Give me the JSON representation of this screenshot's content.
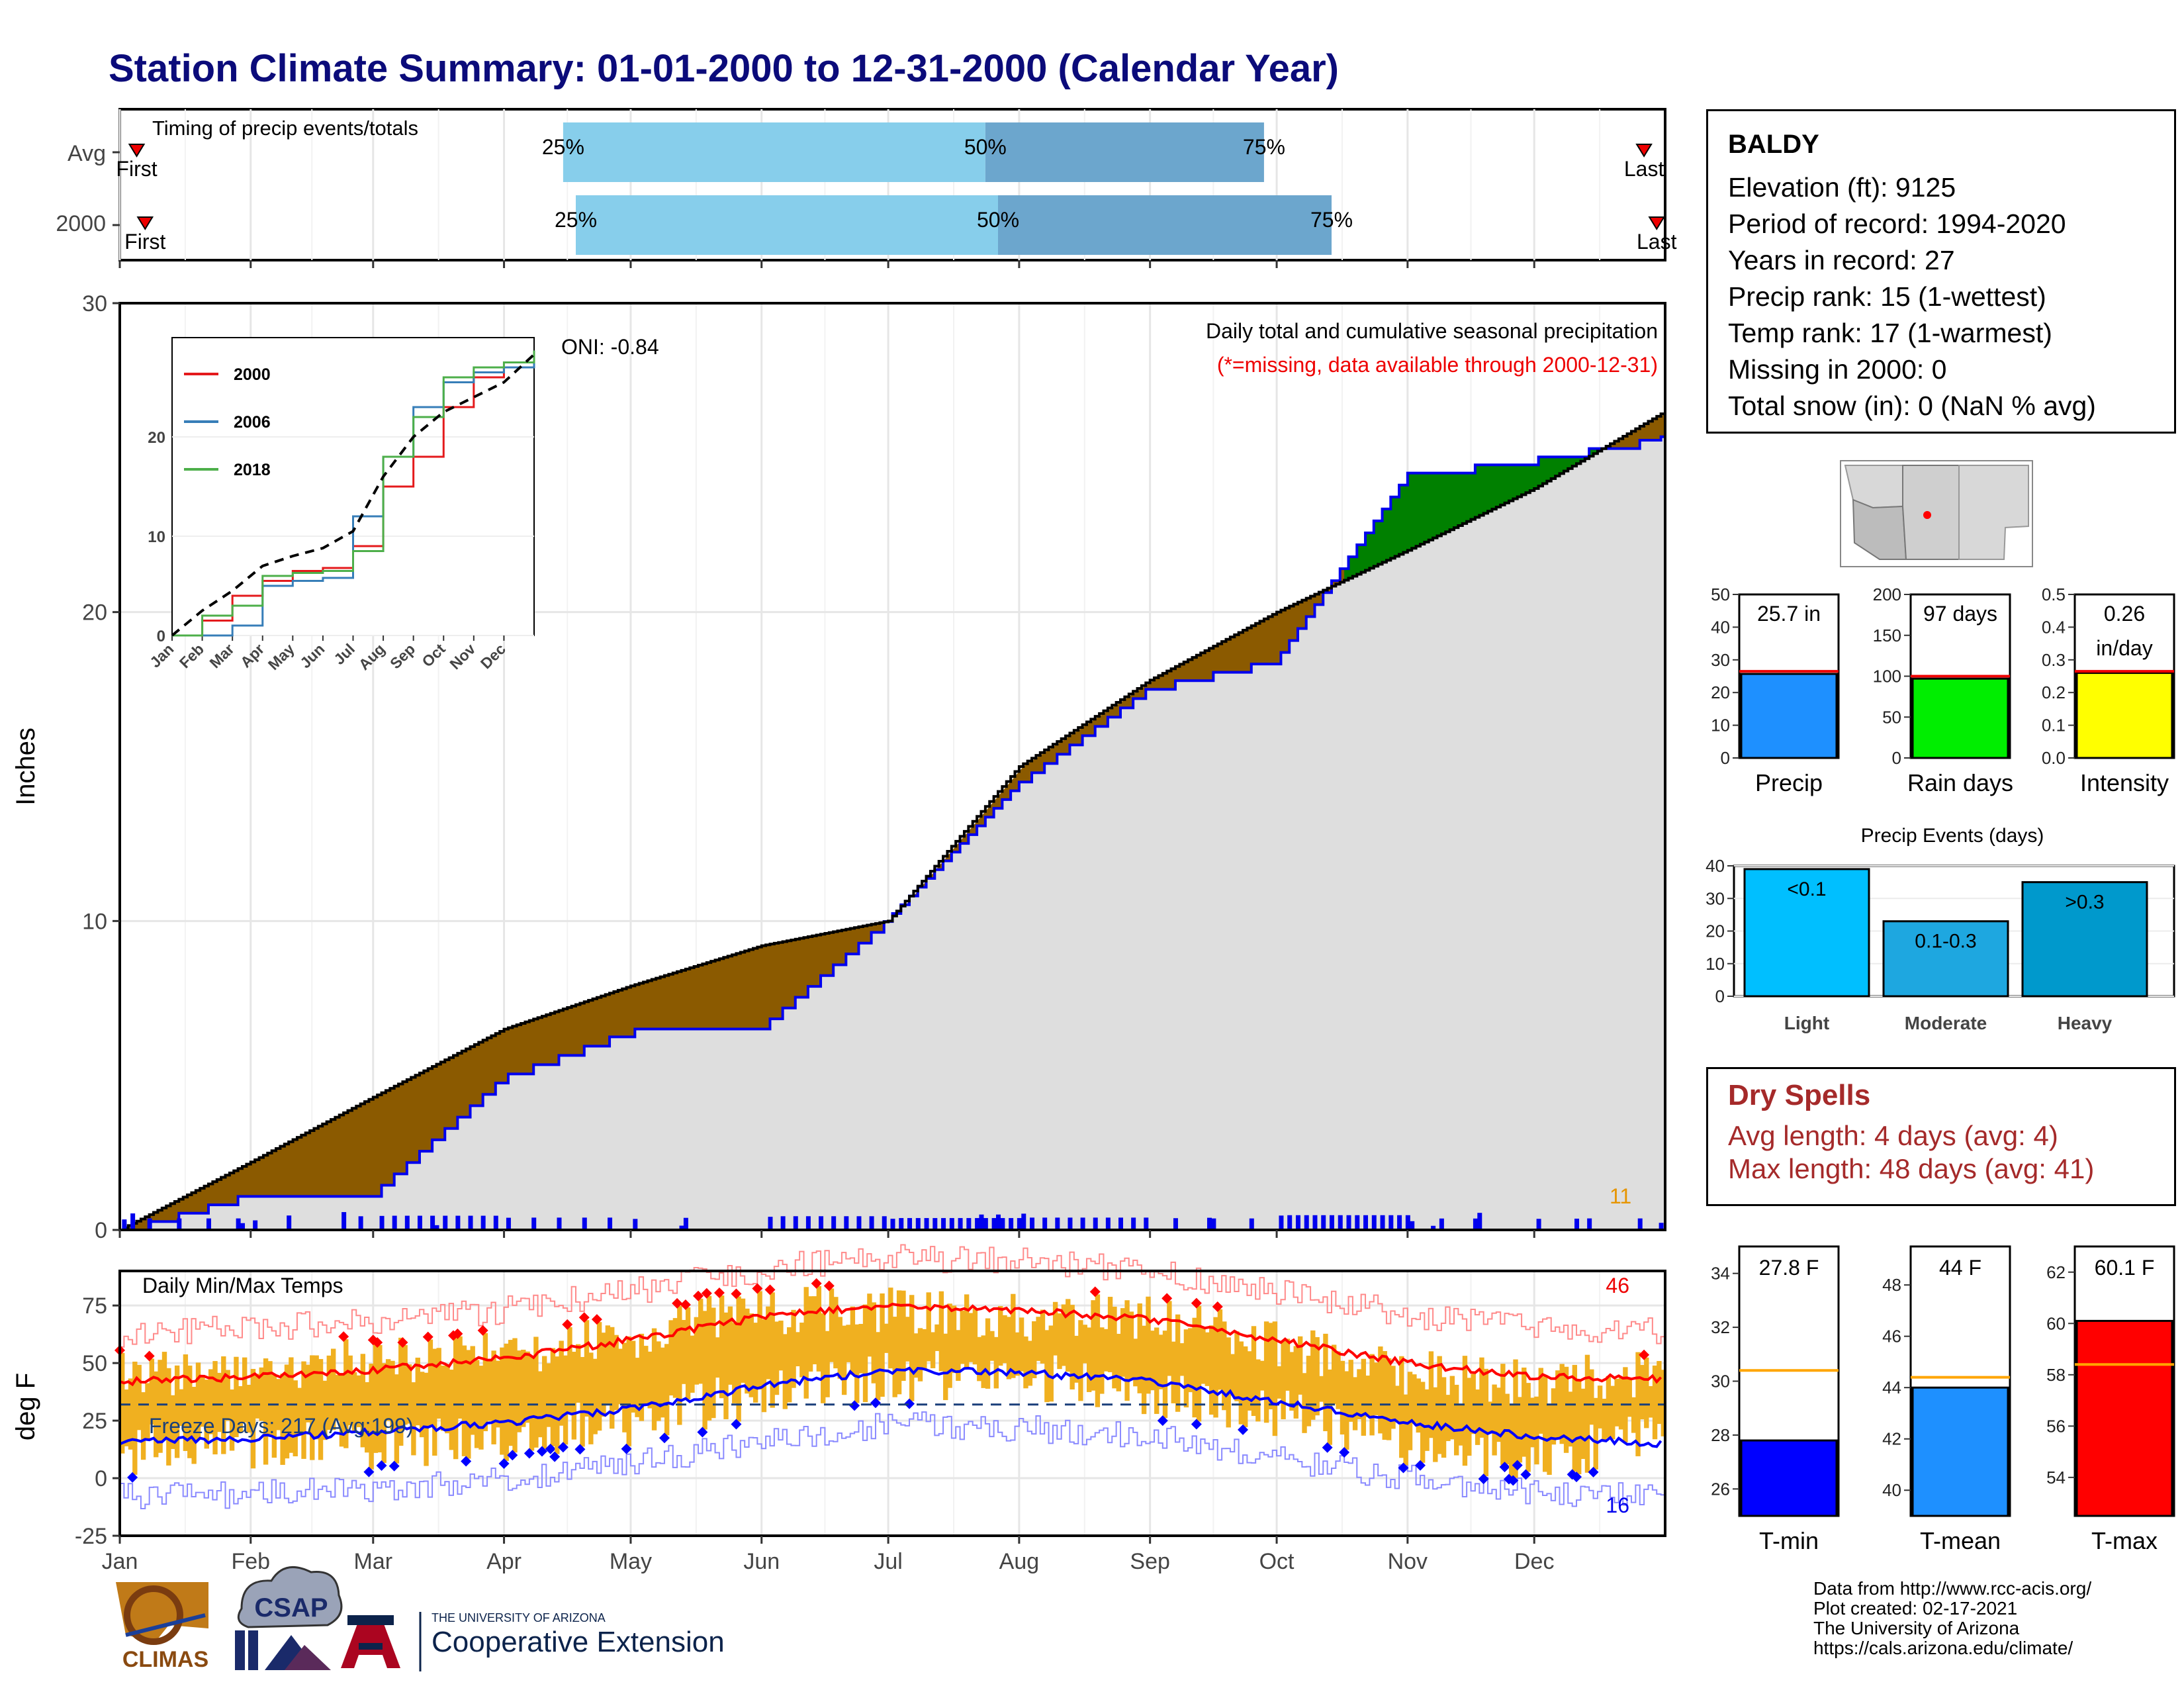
{
  "title": "Station Climate Summary: 01-01-2000 to 12-31-2000 (Calendar Year)",
  "timing": {
    "label": "Timing of precip events/totals",
    "rows": [
      {
        "name": "Avg",
        "p25": "Apr-15",
        "p50": "Jul-24",
        "p75": "Sep-28",
        "first": "Jan-05",
        "last": "Dec-27"
      },
      {
        "name": "2000",
        "p25": "Apr-18",
        "p50": "Jul-27",
        "p75": "Oct-14",
        "first": "Jan-07",
        "last": "Dec-30"
      }
    ],
    "pct_labels": [
      "25%",
      "50%",
      "75%"
    ],
    "first_label": "First",
    "last_label": "Last"
  },
  "precip_panel": {
    "ylabel": "Inches",
    "caption": "Daily total and cumulative seasonal precipitation",
    "missing_note": "(*=missing, data available through 2000-12-31)",
    "oni": "ONI: -0.84",
    "count_label": "11",
    "y_ticks": [
      "0",
      "10",
      "20",
      "30"
    ]
  },
  "inset": {
    "series": [
      "2000",
      "2006",
      "2018"
    ],
    "colors": [
      "#e41a1c",
      "#377eb8",
      "#4daf4a"
    ],
    "y_ticks": [
      "0",
      "10",
      "20"
    ],
    "x_ticks": [
      "Jan",
      "Feb",
      "Mar",
      "Apr",
      "May",
      "Jun",
      "Jul",
      "Aug",
      "Sep",
      "Oct",
      "Nov",
      "Dec"
    ]
  },
  "temp_panel": {
    "ylabel": "deg F",
    "title": "Daily Min/Max Temps",
    "freeze_label": "Freeze Days: 217 (Avg:199)",
    "high_count": "46",
    "low_count": "16",
    "y_ticks": [
      "-25",
      "0",
      "25",
      "50",
      "75"
    ]
  },
  "months": [
    "Jan",
    "Feb",
    "Mar",
    "Apr",
    "May",
    "Jun",
    "Jul",
    "Aug",
    "Sep",
    "Oct",
    "Nov",
    "Dec"
  ],
  "station": {
    "name": "BALDY",
    "lines": [
      "Elevation (ft): 9125",
      "Period of record: 1994-2020",
      "Years in record: 27",
      "Precip rank: 15 (1-wettest)",
      "Temp rank: 17 (1-warmest)",
      "Missing in 2000: 0",
      "Total snow (in): 0 (NaN % avg)"
    ]
  },
  "mini_bars": [
    {
      "label": "Precip",
      "value_text": "25.7 in",
      "value": 25.7,
      "avg": 26.5,
      "max": 50,
      "ticks": [
        "0",
        "10",
        "20",
        "30",
        "40",
        "50"
      ],
      "color": "#1e90ff"
    },
    {
      "label": "Rain days",
      "value_text": "97 days",
      "value": 97,
      "avg": 100,
      "max": 200,
      "ticks": [
        "0",
        "50",
        "100",
        "150",
        "200"
      ],
      "color": "#00ee00"
    },
    {
      "label": "Intensity",
      "value_text": "0.26 in/day",
      "value": 0.26,
      "avg": 0.265,
      "max": 0.5,
      "ticks": [
        "0.0",
        "0.1",
        "0.2",
        "0.3",
        "0.4",
        "0.5"
      ],
      "color": "#ffff00"
    }
  ],
  "events": {
    "title": "Precip Events (days)",
    "ticks": [
      "0",
      "10",
      "20",
      "30",
      "40"
    ],
    "categories": [
      "Light",
      "Moderate",
      "Heavy"
    ],
    "bin_labels": [
      "<0.1",
      "0.1-0.3",
      ">0.3"
    ],
    "values": [
      39,
      23,
      35
    ],
    "colors": [
      "#00bfff",
      "#1ea7e0",
      "#0099cc"
    ]
  },
  "dry_spells": {
    "title": "Dry Spells",
    "avg_length": "Avg length: 4 days (avg: 4)",
    "max_length": "Max length: 48 days (avg: 41)"
  },
  "temp_bars": [
    {
      "label": "T-min",
      "value_text": "27.8 F",
      "value": 27.8,
      "avg": 30.4,
      "min": 25,
      "max": 35,
      "ticks": [
        "26",
        "28",
        "30",
        "32",
        "34"
      ],
      "color": "#0000ff"
    },
    {
      "label": "T-mean",
      "value_text": "44 F",
      "value": 44,
      "avg": 44.4,
      "min": 39,
      "max": 49.5,
      "ticks": [
        "40",
        "42",
        "44",
        "46",
        "48"
      ],
      "color": "#1e90ff"
    },
    {
      "label": "T-max",
      "value_text": "60.1 F",
      "value": 60.1,
      "avg": 58.4,
      "min": 52.5,
      "max": 63,
      "ticks": [
        "54",
        "56",
        "58",
        "60",
        "62"
      ],
      "color": "#ff0000"
    }
  ],
  "footer": {
    "lines": [
      "Data from http://www.rcc-acis.org/",
      "Plot created: 02-17-2021",
      "The University of Arizona",
      "https://cals.arizona.edu/climate/"
    ],
    "logo_climas": "CLIMAS",
    "logo_csap": "CSAP",
    "logo_ua_small": "THE UNIVERSITY OF ARIZONA",
    "logo_ua_big": "Cooperative Extension"
  },
  "chart_data": [
    {
      "type": "area",
      "title": "Daily total and cumulative seasonal precipitation",
      "ylabel": "Inches",
      "ylim": [
        0,
        30
      ],
      "x": [
        "2000-01-01",
        "2000-02-01",
        "2000-03-01",
        "2000-04-01",
        "2000-05-01",
        "2000-06-01",
        "2000-07-01",
        "2000-08-01",
        "2000-09-01",
        "2000-10-01",
        "2000-11-01",
        "2000-12-01",
        "2000-12-31"
      ],
      "series": [
        {
          "name": "2000",
          "values": [
            0,
            1.2,
            1.2,
            5.0,
            6.5,
            6.6,
            10.1,
            14.5,
            17.6,
            18.5,
            24.5,
            25.0,
            25.7
          ]
        },
        {
          "values": [
            0,
            2.2,
            4.3,
            6.5,
            7.9,
            9.2,
            10.0,
            15.0,
            17.8,
            20.0,
            22.0,
            24.0,
            26.5
          ]
        }
      ]
    },
    {
      "type": "line",
      "ylim": [
        0,
        30
      ],
      "x": [
        "Jan",
        "Feb",
        "Mar",
        "Apr",
        "May",
        "Jun",
        "Jul",
        "Aug",
        "Sep",
        "Oct",
        "Nov",
        "Dec",
        "Dec-31"
      ],
      "series": [
        {
          "name": "2000",
          "values": [
            0,
            1.5,
            4,
            5.5,
            6.5,
            6.8,
            9,
            15,
            18,
            23,
            26,
            27,
            28.5
          ]
        },
        {
          "name": "2006",
          "values": [
            0,
            0,
            1,
            5,
            5.5,
            5.8,
            12,
            18,
            23,
            25.5,
            26.5,
            27,
            28
          ]
        },
        {
          "name": "2018",
          "values": [
            0,
            2,
            3,
            6,
            6.3,
            6.5,
            8.5,
            18,
            22,
            26,
            27,
            27.5,
            28.7
          ]
        },
        {
          "values": [
            0,
            2.5,
            4.5,
            7,
            8,
            8.8,
            10.5,
            16,
            20,
            22.5,
            24,
            25.5,
            28.3
          ]
        }
      ]
    },
    {
      "type": "line",
      "title": "Daily Min/Max Temps",
      "ylabel": "deg F",
      "ylim": [
        -25,
        90
      ],
      "x": [
        "Jan",
        "Feb",
        "Mar",
        "Apr",
        "May",
        "Jun",
        "Jul",
        "Aug",
        "Sep",
        "Oct",
        "Nov",
        "Dec",
        "Dec-31"
      ],
      "series": [
        {
          "name": "avg max",
          "values": [
            42,
            44,
            47,
            52,
            60,
            70,
            75,
            73,
            69,
            60,
            50,
            44,
            43
          ]
        },
        {
          "name": "avg min",
          "values": [
            16,
            17,
            20,
            24,
            30,
            40,
            47,
            46,
            42,
            33,
            24,
            18,
            15
          ]
        },
        {
          "name": "daily max",
          "values": [
            45,
            48,
            50,
            55,
            63,
            72,
            74,
            70,
            68,
            58,
            45,
            40,
            48
          ]
        },
        {
          "name": "daily min",
          "values": [
            12,
            15,
            14,
            18,
            25,
            38,
            44,
            45,
            38,
            28,
            15,
            8,
            20
          ]
        }
      ]
    }
  ]
}
